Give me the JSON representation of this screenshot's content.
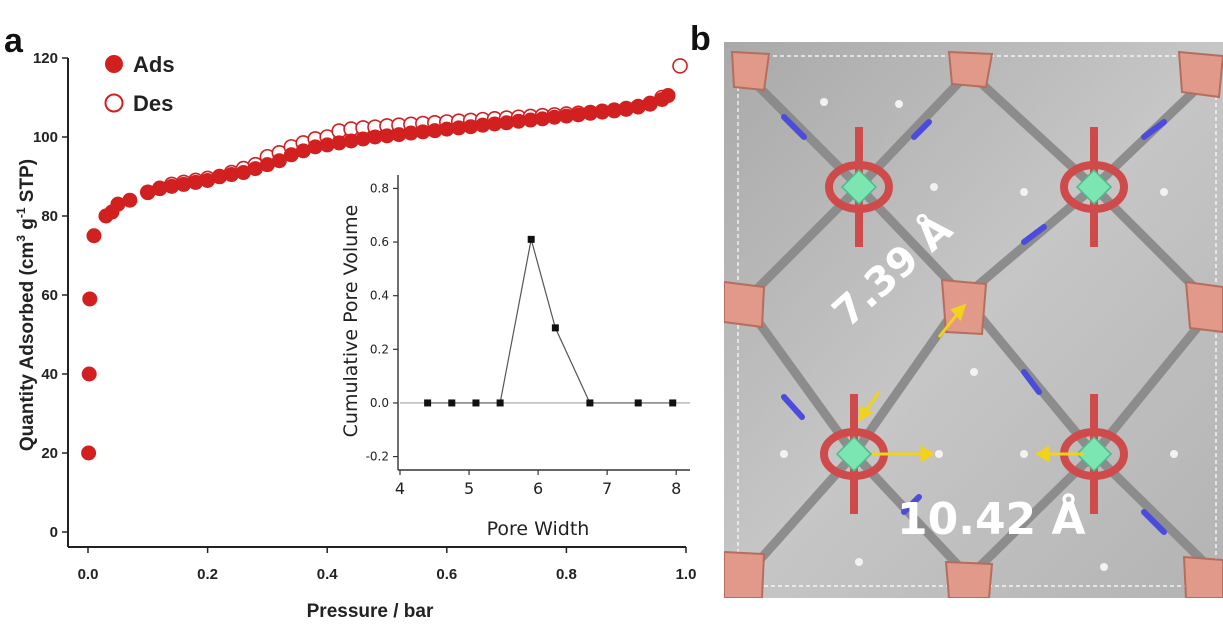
{
  "panel_labels": {
    "a": "a",
    "b": "b"
  },
  "chart_data": [
    {
      "type": "scatter",
      "xlabel": "Pressure / bar",
      "ylabel_main": "Quantity Adsorbed (cm",
      "ylabel_sup1": "3",
      "ylabel_mid": " g",
      "ylabel_sup2": "-1",
      "ylabel_end": " STP)",
      "xlim": [
        0.0,
        1.0
      ],
      "ylim": [
        0,
        120
      ],
      "xticks": [
        "0.0",
        "0.2",
        "0.4",
        "0.6",
        "0.8",
        "1.0"
      ],
      "xtick_values": [
        0.0,
        0.2,
        0.4,
        0.6,
        0.8,
        1.0
      ],
      "yticks": [
        "0",
        "20",
        "40",
        "60",
        "80",
        "100",
        "120"
      ],
      "ytick_values": [
        0,
        20,
        40,
        60,
        80,
        100,
        120
      ],
      "legend_position": "top-left",
      "series": [
        {
          "name": "Ads",
          "marker": "filled-circle",
          "color": "#d21f1f",
          "x": [
            0.001,
            0.002,
            0.003,
            0.01,
            0.03,
            0.04,
            0.05,
            0.07,
            0.1,
            0.12,
            0.14,
            0.16,
            0.18,
            0.2,
            0.22,
            0.24,
            0.26,
            0.28,
            0.3,
            0.32,
            0.34,
            0.36,
            0.38,
            0.4,
            0.42,
            0.44,
            0.46,
            0.48,
            0.5,
            0.52,
            0.54,
            0.56,
            0.58,
            0.6,
            0.62,
            0.64,
            0.66,
            0.68,
            0.7,
            0.72,
            0.74,
            0.76,
            0.78,
            0.8,
            0.82,
            0.84,
            0.86,
            0.88,
            0.9,
            0.92,
            0.94,
            0.96,
            0.97
          ],
          "y": [
            20,
            40,
            59,
            75,
            80,
            81,
            83,
            84,
            86,
            87,
            87.5,
            88,
            88.5,
            89,
            90,
            90.5,
            91,
            92,
            93,
            94,
            95.5,
            96.5,
            97.5,
            98,
            98.5,
            99,
            99.5,
            100,
            100.3,
            100.6,
            101,
            101.3,
            101.6,
            102,
            102.3,
            102.6,
            103,
            103.3,
            103.6,
            104,
            104.3,
            104.6,
            105,
            105.3,
            105.6,
            106,
            106.3,
            106.6,
            107,
            107.6,
            108.3,
            109.5,
            110.5
          ]
        },
        {
          "name": "Des",
          "marker": "open-circle",
          "color": "#d21f1f",
          "x": [
            0.1,
            0.12,
            0.14,
            0.16,
            0.18,
            0.2,
            0.22,
            0.24,
            0.26,
            0.28,
            0.3,
            0.32,
            0.34,
            0.36,
            0.38,
            0.4,
            0.42,
            0.44,
            0.46,
            0.48,
            0.5,
            0.52,
            0.54,
            0.56,
            0.58,
            0.6,
            0.62,
            0.64,
            0.66,
            0.68,
            0.7,
            0.72,
            0.74,
            0.76,
            0.78,
            0.8,
            0.82,
            0.84,
            0.86,
            0.88,
            0.9,
            0.92,
            0.94,
            0.96,
            0.99
          ],
          "y": [
            86,
            87,
            88,
            88.5,
            89,
            89.5,
            90,
            91,
            92,
            93,
            95,
            96,
            97.5,
            98.5,
            99.5,
            100,
            101.5,
            102,
            102.3,
            102.5,
            102.8,
            103,
            103.2,
            103.4,
            103.6,
            103.8,
            104,
            104.2,
            104.4,
            104.6,
            104.8,
            105,
            105.2,
            105.4,
            105.6,
            105.8,
            106,
            106.2,
            106.5,
            106.8,
            107.2,
            107.7,
            108.5,
            110,
            118
          ]
        }
      ]
    },
    {
      "type": "line",
      "xlabel": "Pore Width",
      "ylabel": "Cumulative Pore Volume",
      "xlim": [
        4,
        8.2
      ],
      "ylim": [
        -0.25,
        0.85
      ],
      "xticks": [
        "4",
        "5",
        "6",
        "7",
        "8"
      ],
      "xtick_values": [
        4,
        5,
        6,
        7,
        8
      ],
      "yticks": [
        "-0.2",
        "0.0",
        "0.2",
        "0.4",
        "0.6",
        "0.8"
      ],
      "ytick_values": [
        -0.2,
        0.0,
        0.2,
        0.4,
        0.6,
        0.8
      ],
      "series": [
        {
          "marker": "filled-square",
          "color": "#111111",
          "x": [
            4.4,
            4.75,
            5.1,
            5.45,
            5.9,
            6.25,
            6.75,
            7.45,
            7.95
          ],
          "y": [
            0,
            0,
            0,
            0,
            0.61,
            0.28,
            0,
            0,
            0
          ]
        }
      ]
    }
  ],
  "structure": {
    "label_diagonal": "7.39 Å",
    "label_horizontal": "10.42 Å",
    "colors": {
      "background": "#b9b9b9",
      "copper": "#e19a8a",
      "oxygen": "#cf4b4b",
      "nitrogen": "#4b4bdc",
      "carbon": "#8f8f8f",
      "hydrogen": "#f2f2f2",
      "metal_center": "#7be6b2",
      "arrow": "#f2d21b"
    }
  }
}
